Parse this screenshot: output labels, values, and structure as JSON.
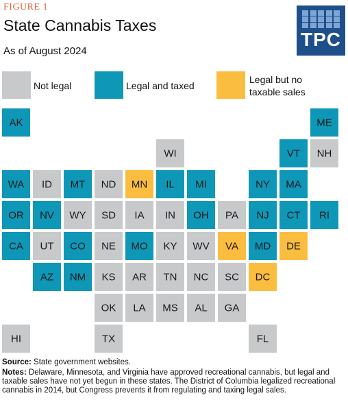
{
  "figure_label": "FIGURE 1",
  "title": "State Cannabis Taxes",
  "subtitle": "As of August 2024",
  "logo_text": "TPC",
  "colors": {
    "not_legal": "#c8c9cb",
    "legal_taxed": "#0e97b7",
    "legal_no_sales": "#fbbd3f",
    "label_text": "#1a1a1a",
    "logo_bg": "#1e4f8a"
  },
  "legend": [
    {
      "category": "not_legal",
      "label": "Not legal"
    },
    {
      "category": "legal_taxed",
      "label": "Legal and taxed"
    },
    {
      "category": "legal_no_sales",
      "label_lines": [
        "Legal but no",
        "taxable sales"
      ]
    }
  ],
  "chart_data": {
    "type": "table",
    "grid_columns": 11,
    "grid_rows": 8,
    "states": [
      {
        "abbr": "AK",
        "row": 0,
        "col": 0,
        "status": "legal_taxed"
      },
      {
        "abbr": "ME",
        "row": 0,
        "col": 10,
        "status": "legal_taxed"
      },
      {
        "abbr": "WI",
        "row": 1,
        "col": 5,
        "status": "not_legal"
      },
      {
        "abbr": "VT",
        "row": 1,
        "col": 9,
        "status": "legal_taxed"
      },
      {
        "abbr": "NH",
        "row": 1,
        "col": 10,
        "status": "not_legal"
      },
      {
        "abbr": "WA",
        "row": 2,
        "col": 0,
        "status": "legal_taxed"
      },
      {
        "abbr": "ID",
        "row": 2,
        "col": 1,
        "status": "not_legal"
      },
      {
        "abbr": "MT",
        "row": 2,
        "col": 2,
        "status": "legal_taxed"
      },
      {
        "abbr": "ND",
        "row": 2,
        "col": 3,
        "status": "not_legal"
      },
      {
        "abbr": "MN",
        "row": 2,
        "col": 4,
        "status": "legal_no_sales"
      },
      {
        "abbr": "IL",
        "row": 2,
        "col": 5,
        "status": "legal_taxed"
      },
      {
        "abbr": "MI",
        "row": 2,
        "col": 6,
        "status": "legal_taxed"
      },
      {
        "abbr": "NY",
        "row": 2,
        "col": 8,
        "status": "legal_taxed"
      },
      {
        "abbr": "MA",
        "row": 2,
        "col": 9,
        "status": "legal_taxed"
      },
      {
        "abbr": "OR",
        "row": 3,
        "col": 0,
        "status": "legal_taxed"
      },
      {
        "abbr": "NV",
        "row": 3,
        "col": 1,
        "status": "legal_taxed"
      },
      {
        "abbr": "WY",
        "row": 3,
        "col": 2,
        "status": "not_legal"
      },
      {
        "abbr": "SD",
        "row": 3,
        "col": 3,
        "status": "not_legal"
      },
      {
        "abbr": "IA",
        "row": 3,
        "col": 4,
        "status": "not_legal"
      },
      {
        "abbr": "IN",
        "row": 3,
        "col": 5,
        "status": "not_legal"
      },
      {
        "abbr": "OH",
        "row": 3,
        "col": 6,
        "status": "legal_taxed"
      },
      {
        "abbr": "PA",
        "row": 3,
        "col": 7,
        "status": "not_legal"
      },
      {
        "abbr": "NJ",
        "row": 3,
        "col": 8,
        "status": "legal_taxed"
      },
      {
        "abbr": "CT",
        "row": 3,
        "col": 9,
        "status": "legal_taxed"
      },
      {
        "abbr": "RI",
        "row": 3,
        "col": 10,
        "status": "legal_taxed"
      },
      {
        "abbr": "CA",
        "row": 4,
        "col": 0,
        "status": "legal_taxed"
      },
      {
        "abbr": "UT",
        "row": 4,
        "col": 1,
        "status": "not_legal"
      },
      {
        "abbr": "CO",
        "row": 4,
        "col": 2,
        "status": "legal_taxed"
      },
      {
        "abbr": "NE",
        "row": 4,
        "col": 3,
        "status": "not_legal"
      },
      {
        "abbr": "MO",
        "row": 4,
        "col": 4,
        "status": "legal_taxed"
      },
      {
        "abbr": "KY",
        "row": 4,
        "col": 5,
        "status": "not_legal"
      },
      {
        "abbr": "WV",
        "row": 4,
        "col": 6,
        "status": "not_legal"
      },
      {
        "abbr": "VA",
        "row": 4,
        "col": 7,
        "status": "legal_no_sales"
      },
      {
        "abbr": "MD",
        "row": 4,
        "col": 8,
        "status": "legal_taxed"
      },
      {
        "abbr": "DE",
        "row": 4,
        "col": 9,
        "status": "legal_no_sales"
      },
      {
        "abbr": "AZ",
        "row": 5,
        "col": 1,
        "status": "legal_taxed"
      },
      {
        "abbr": "NM",
        "row": 5,
        "col": 2,
        "status": "legal_taxed"
      },
      {
        "abbr": "KS",
        "row": 5,
        "col": 3,
        "status": "not_legal"
      },
      {
        "abbr": "AR",
        "row": 5,
        "col": 4,
        "status": "not_legal"
      },
      {
        "abbr": "TN",
        "row": 5,
        "col": 5,
        "status": "not_legal"
      },
      {
        "abbr": "NC",
        "row": 5,
        "col": 6,
        "status": "not_legal"
      },
      {
        "abbr": "SC",
        "row": 5,
        "col": 7,
        "status": "not_legal"
      },
      {
        "abbr": "DC",
        "row": 5,
        "col": 8,
        "status": "legal_no_sales"
      },
      {
        "abbr": "OK",
        "row": 6,
        "col": 3,
        "status": "not_legal"
      },
      {
        "abbr": "LA",
        "row": 6,
        "col": 4,
        "status": "not_legal"
      },
      {
        "abbr": "MS",
        "row": 6,
        "col": 5,
        "status": "not_legal"
      },
      {
        "abbr": "AL",
        "row": 6,
        "col": 6,
        "status": "not_legal"
      },
      {
        "abbr": "GA",
        "row": 6,
        "col": 7,
        "status": "not_legal"
      },
      {
        "abbr": "HI",
        "row": 7,
        "col": 0,
        "status": "not_legal"
      },
      {
        "abbr": "TX",
        "row": 7,
        "col": 3,
        "status": "not_legal"
      },
      {
        "abbr": "FL",
        "row": 7,
        "col": 8,
        "status": "not_legal"
      }
    ]
  },
  "source": {
    "label": "Source:",
    "text": " State government websites."
  },
  "notes": {
    "label": "Notes:",
    "text": " Delaware, Minnesota, and Virginia have approved recreational cannabis, but legal and taxable sales have not yet begun in these states.  The District of Columbia legalized recreational cannabis in 2014, but Congress prevents it from regulating and taxing legal sales."
  }
}
